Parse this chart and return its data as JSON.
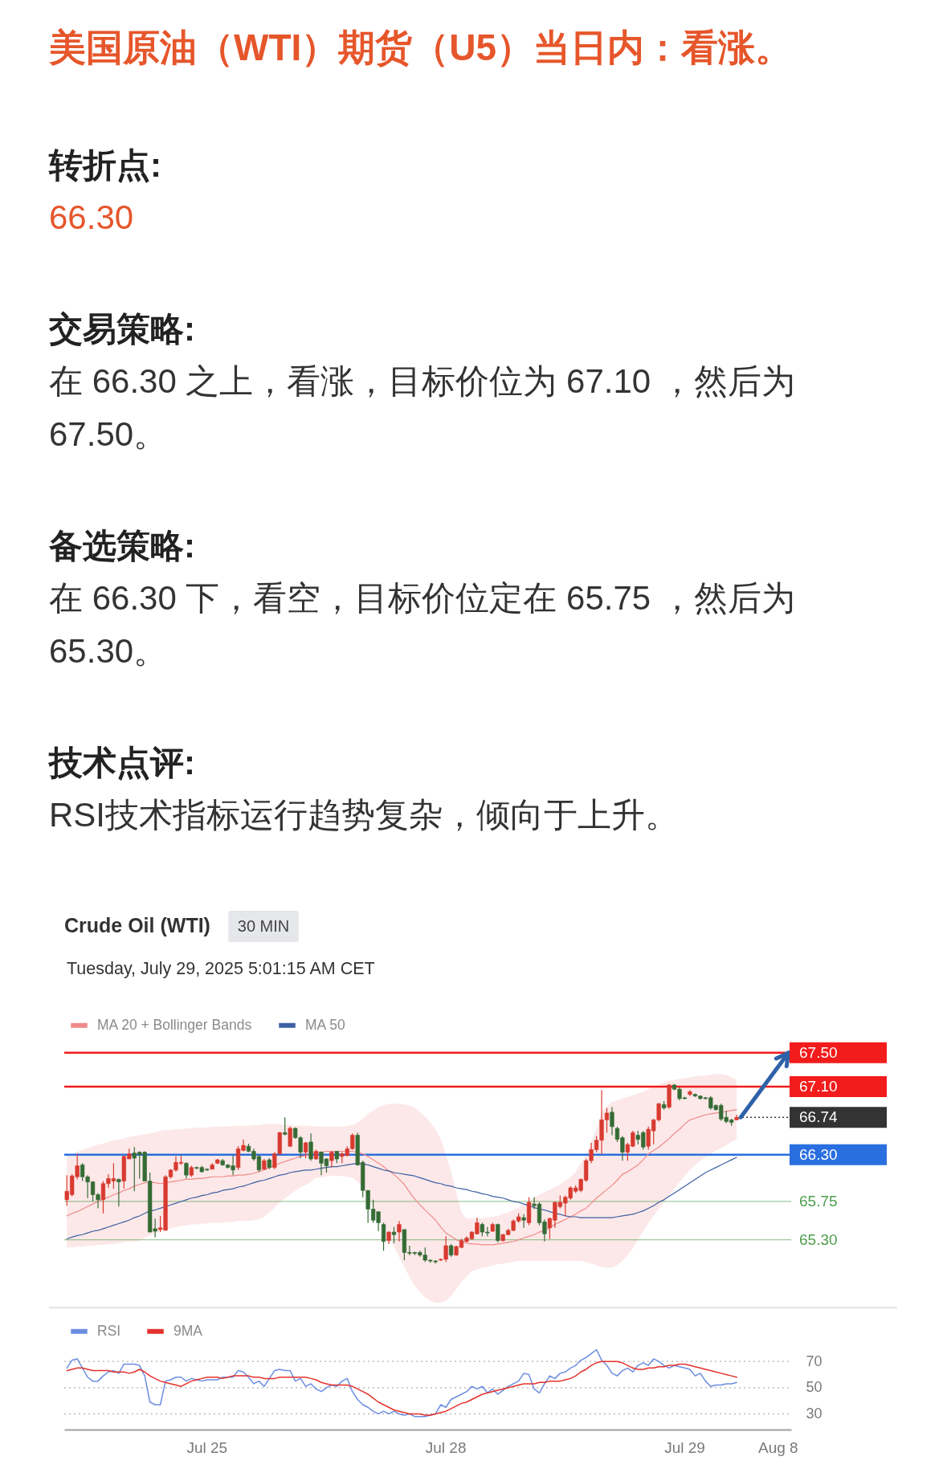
{
  "chart_data": [
    {
      "type": "candlestick",
      "title": "Crude Oil (WTI)",
      "subtitle": "Tuesday, July 29, 2025 5:01:15 AM CET",
      "annotations": [
        "美国原油（WTI）期货（U5）当日内：看涨。",
        "转折点:",
        "66.30",
        "交易策略:",
        "在 66.30 之上，看涨，目标价位为 67.10 ，然后为 67.50。",
        "备选策略:",
        "在 66.30 下，看空，目标价位定在 65.75 ，然后为 65.30。",
        "技术点评:",
        "RSI技术指标运行趋势复杂，倾向于上升。",
        "30 MIN"
      ],
      "categories": [
        null,
        null,
        null,
        null,
        null,
        null,
        null,
        null,
        null,
        null,
        null,
        null,
        null,
        null,
        null,
        null,
        null,
        null,
        null,
        null,
        null,
        null,
        null,
        null,
        null,
        null,
        null,
        "Jul 25",
        null,
        null,
        null,
        null,
        null,
        null,
        null,
        null,
        null,
        null,
        null,
        null,
        null,
        null,
        null,
        null,
        null,
        null,
        null,
        null,
        null,
        null,
        null,
        null,
        null,
        null,
        null,
        null,
        null,
        null,
        null,
        null,
        null,
        null,
        null,
        null,
        null,
        null,
        null,
        null,
        null,
        null,
        null,
        null,
        null,
        "Jul 28",
        null,
        null,
        null,
        null,
        null,
        null,
        null,
        null,
        null,
        null,
        null,
        null,
        null,
        null,
        null,
        null,
        null,
        null,
        null,
        null,
        null,
        null,
        null,
        null,
        null,
        null,
        null,
        null,
        null,
        null,
        null,
        null,
        null,
        null,
        null,
        null,
        null,
        null,
        null,
        null,
        null,
        null,
        null,
        null,
        null,
        "Jul 29",
        null,
        null,
        null,
        null,
        null,
        null,
        null,
        null,
        null,
        null,
        null,
        null,
        null,
        null,
        null,
        null,
        null,
        "Aug 8",
        null,
        null
      ],
      "ohlc": [
        [
          65.77,
          66.06,
          65.7,
          65.87
        ],
        [
          65.83,
          66.07,
          65.81,
          66.05
        ],
        [
          66.04,
          66.31,
          66.01,
          66.17
        ],
        [
          66.18,
          66.2,
          65.99,
          66.04
        ],
        [
          66.04,
          66.06,
          65.79,
          65.98
        ],
        [
          65.98,
          65.99,
          65.75,
          65.83
        ],
        [
          65.83,
          65.85,
          65.67,
          65.77
        ],
        [
          65.77,
          65.99,
          65.61,
          65.96
        ],
        [
          65.96,
          66.07,
          65.91,
          66.02
        ],
        [
          65.99,
          66.2,
          65.9,
          66.02
        ],
        [
          66.01,
          66.02,
          65.69,
          65.98
        ],
        [
          65.99,
          66.29,
          65.9,
          66.28
        ],
        [
          66.25,
          66.37,
          66.25,
          66.31
        ],
        [
          66.32,
          66.39,
          65.87,
          66.26
        ],
        [
          66.33,
          66.34,
          66.02,
          66.3
        ],
        [
          66.33,
          66.34,
          65.99,
          65.99
        ],
        [
          65.99,
          66.09,
          65.39,
          65.39
        ],
        [
          65.43,
          65.55,
          65.33,
          65.4
        ],
        [
          65.42,
          65.58,
          65.39,
          65.44
        ],
        [
          65.41,
          66.06,
          65.41,
          66.04
        ],
        [
          66.04,
          66.13,
          66.02,
          66.12
        ],
        [
          66.12,
          66.28,
          66.1,
          66.21
        ],
        [
          66.2,
          66.29,
          66.18,
          66.21
        ],
        [
          66.2,
          66.21,
          66.02,
          66.06
        ],
        [
          66.06,
          66.17,
          66.04,
          66.15
        ],
        [
          66.15,
          66.16,
          66.13,
          66.14
        ],
        [
          66.15,
          66.17,
          66.09,
          66.1
        ],
        [
          66.13,
          66.14,
          66.11,
          66.12
        ],
        [
          66.13,
          66.2,
          66.13,
          66.18
        ],
        [
          66.2,
          66.25,
          66.19,
          66.24
        ],
        [
          66.23,
          66.25,
          66.17,
          66.18
        ],
        [
          66.18,
          66.19,
          66.14,
          66.15
        ],
        [
          66.17,
          66.29,
          66.06,
          66.12
        ],
        [
          66.15,
          66.4,
          66.12,
          66.37
        ],
        [
          66.35,
          66.48,
          66.34,
          66.41
        ],
        [
          66.4,
          66.43,
          66.33,
          66.34
        ],
        [
          66.34,
          66.37,
          66.23,
          66.25
        ],
        [
          66.28,
          66.3,
          66.1,
          66.12
        ],
        [
          66.13,
          66.25,
          66.12,
          66.23
        ],
        [
          66.24,
          66.26,
          66.13,
          66.15
        ],
        [
          66.15,
          66.33,
          66.13,
          66.31
        ],
        [
          66.31,
          66.57,
          66.3,
          66.56
        ],
        [
          66.56,
          66.74,
          66.53,
          66.54
        ],
        [
          66.4,
          66.63,
          66.39,
          66.61
        ],
        [
          66.61,
          66.62,
          66.49,
          66.5
        ],
        [
          66.5,
          66.52,
          66.26,
          66.33
        ],
        [
          66.33,
          66.45,
          66.26,
          66.44
        ],
        [
          66.45,
          66.55,
          66.23,
          66.25
        ],
        [
          66.25,
          66.36,
          66.24,
          66.34
        ],
        [
          66.33,
          66.34,
          66.06,
          66.2
        ],
        [
          66.25,
          66.26,
          66.09,
          66.17
        ],
        [
          66.23,
          66.34,
          66.15,
          66.33
        ],
        [
          66.34,
          66.34,
          66.2,
          66.25
        ],
        [
          66.28,
          66.33,
          66.2,
          66.31
        ],
        [
          66.29,
          66.4,
          66.28,
          66.37
        ],
        [
          66.37,
          66.55,
          66.36,
          66.53
        ],
        [
          66.53,
          66.56,
          66.17,
          66.18
        ],
        [
          66.21,
          66.23,
          65.8,
          65.88
        ],
        [
          65.88,
          65.88,
          65.5,
          65.66
        ],
        [
          65.66,
          65.77,
          65.5,
          65.53
        ],
        [
          65.63,
          65.63,
          65.4,
          65.5
        ],
        [
          65.48,
          65.5,
          65.17,
          65.28
        ],
        [
          65.29,
          65.4,
          65.25,
          65.39
        ],
        [
          65.39,
          65.45,
          65.26,
          65.36
        ],
        [
          65.39,
          65.52,
          65.28,
          65.48
        ],
        [
          65.42,
          65.42,
          65.06,
          65.15
        ],
        [
          65.15,
          65.23,
          65.12,
          65.14
        ],
        [
          65.15,
          65.16,
          65.12,
          65.14
        ],
        [
          65.15,
          65.17,
          65.1,
          65.12
        ],
        [
          65.12,
          65.21,
          65.04,
          65.06
        ],
        [
          65.06,
          65.07,
          65.03,
          65.05
        ],
        [
          65.05,
          65.06,
          65.02,
          65.04
        ],
        [
          65.06,
          65.08,
          65.05,
          65.07
        ],
        [
          65.07,
          65.34,
          65.04,
          65.23
        ],
        [
          65.23,
          65.25,
          65.1,
          65.12
        ],
        [
          65.12,
          65.23,
          65.11,
          65.22
        ],
        [
          65.21,
          65.31,
          65.2,
          65.29
        ],
        [
          65.28,
          65.34,
          65.27,
          65.32
        ],
        [
          65.31,
          65.4,
          65.3,
          65.39
        ],
        [
          65.37,
          65.56,
          65.36,
          65.5
        ],
        [
          65.48,
          65.5,
          65.34,
          65.39
        ],
        [
          65.39,
          65.45,
          65.34,
          65.38
        ],
        [
          65.4,
          65.5,
          65.39,
          65.48
        ],
        [
          65.48,
          65.49,
          65.27,
          65.29
        ],
        [
          65.29,
          65.37,
          65.28,
          65.36
        ],
        [
          65.36,
          65.43,
          65.35,
          65.41
        ],
        [
          65.41,
          65.54,
          65.4,
          65.52
        ],
        [
          65.52,
          65.61,
          65.5,
          65.57
        ],
        [
          65.56,
          65.6,
          65.44,
          65.53
        ],
        [
          65.5,
          65.8,
          65.47,
          65.74
        ],
        [
          65.72,
          65.8,
          65.66,
          65.7
        ],
        [
          65.72,
          65.74,
          65.47,
          65.5
        ],
        [
          65.51,
          65.54,
          65.28,
          65.37
        ],
        [
          65.44,
          65.56,
          65.31,
          65.55
        ],
        [
          65.53,
          65.75,
          65.44,
          65.74
        ],
        [
          65.69,
          65.82,
          65.67,
          65.74
        ],
        [
          65.73,
          65.82,
          65.58,
          65.8
        ],
        [
          65.79,
          65.93,
          65.77,
          65.91
        ],
        [
          65.87,
          65.94,
          65.85,
          65.91
        ],
        [
          65.88,
          66.02,
          65.86,
          66.01
        ],
        [
          66.0,
          66.25,
          65.98,
          66.23
        ],
        [
          66.23,
          66.44,
          66.2,
          66.36
        ],
        [
          66.36,
          66.52,
          66.33,
          66.47
        ],
        [
          66.47,
          67.06,
          66.31,
          66.71
        ],
        [
          66.71,
          66.85,
          66.56,
          66.79
        ],
        [
          66.8,
          66.86,
          66.53,
          66.63
        ],
        [
          66.61,
          66.63,
          66.45,
          66.48
        ],
        [
          66.5,
          66.52,
          66.23,
          66.33
        ],
        [
          66.33,
          66.44,
          66.23,
          66.42
        ],
        [
          66.4,
          66.58,
          66.39,
          66.56
        ],
        [
          66.53,
          66.58,
          66.42,
          66.48
        ],
        [
          66.56,
          66.58,
          66.36,
          66.39
        ],
        [
          66.4,
          66.63,
          66.36,
          66.6
        ],
        [
          66.58,
          66.72,
          66.42,
          66.71
        ],
        [
          66.71,
          66.91,
          66.69,
          66.9
        ],
        [
          66.89,
          66.93,
          66.83,
          66.85
        ],
        [
          66.86,
          67.13,
          66.84,
          67.12
        ],
        [
          67.12,
          67.13,
          67.06,
          67.07
        ],
        [
          67.07,
          67.09,
          66.94,
          66.96
        ],
        [
          66.97,
          66.98,
          66.95,
          66.96
        ],
        [
          67.01,
          67.06,
          66.99,
          67.04
        ],
        [
          67.01,
          67.02,
          66.98,
          66.99
        ],
        [
          66.99,
          67.0,
          66.95,
          66.96
        ],
        [
          66.97,
          66.98,
          66.95,
          66.96
        ],
        [
          66.97,
          66.99,
          66.83,
          66.85
        ],
        [
          66.88,
          66.89,
          66.82,
          66.83
        ],
        [
          66.88,
          66.9,
          66.7,
          66.72
        ],
        [
          66.74,
          66.82,
          66.67,
          66.69
        ],
        [
          66.71,
          66.72,
          66.64,
          66.68
        ],
        [
          66.71,
          66.77,
          66.71,
          66.74
        ],
        null,
        null,
        null,
        null,
        null,
        null,
        null,
        null,
        null,
        null
      ],
      "colors": [
        "#d83a30",
        "#d83a30",
        "#d83a30",
        "#356b35",
        "#356b35",
        "#356b35",
        "#356b35",
        "#d83a30",
        "#d83a30",
        "#d83a30",
        "#356b35",
        "#d83a30",
        "#d83a30",
        "#356b35",
        "#356b35",
        "#356b35",
        "#356b35",
        "#356b35",
        "#d83a30",
        "#d83a30",
        "#d83a30",
        "#d83a30",
        "#d83a30",
        "#356b35",
        "#d83a30",
        "#356b35",
        "#356b35",
        "#356b35",
        "#d83a30",
        "#d83a30",
        "#356b35",
        "#356b35",
        "#356b35",
        "#d83a30",
        "#d83a30",
        "#356b35",
        "#356b35",
        "#356b35",
        "#d83a30",
        "#356b35",
        "#d83a30",
        "#d83a30",
        "#356b35",
        "#d83a30",
        "#356b35",
        "#356b35",
        "#d83a30",
        "#356b35",
        "#d83a30",
        "#356b35",
        "#356b35",
        "#d83a30",
        "#356b35",
        "#d83a30",
        "#d83a30",
        "#d83a30",
        "#356b35",
        "#356b35",
        "#356b35",
        "#356b35",
        "#356b35",
        "#356b35",
        "#d83a30",
        "#356b35",
        "#d83a30",
        "#356b35",
        "#356b35",
        "#356b35",
        "#356b35",
        "#356b35",
        "#356b35",
        "#356b35",
        "#d83a30",
        "#d83a30",
        "#356b35",
        "#d83a30",
        "#d83a30",
        "#d83a30",
        "#d83a30",
        "#d83a30",
        "#356b35",
        "#356b35",
        "#d83a30",
        "#356b35",
        "#d83a30",
        "#d83a30",
        "#d83a30",
        "#d83a30",
        "#356b35",
        "#d83a30",
        "#356b35",
        "#356b35",
        "#356b35",
        "#d83a30",
        "#d83a30",
        "#d83a30",
        "#d83a30",
        "#d83a30",
        "#d83a30",
        "#d83a30",
        "#d83a30",
        "#d83a30",
        "#d83a30",
        "#d83a30",
        "#d83a30",
        "#356b35",
        "#356b35",
        "#356b35",
        "#d83a30",
        "#d83a30",
        "#356b35",
        "#356b35",
        "#d83a30",
        "#d83a30",
        "#d83a30",
        "#356b35",
        "#d83a30",
        "#356b35",
        "#356b35",
        "#356b35",
        "#d83a30",
        "#356b35",
        "#356b35",
        "#356b35",
        "#356b35",
        "#356b35",
        "#356b35",
        "#356b35",
        "#356b35",
        "#d83a30",
        null,
        null,
        null,
        null,
        null,
        null,
        null,
        null,
        null,
        null
      ],
      "series": [
        {
          "name": "MA 20 + Bollinger Bands",
          "type": "line",
          "color": "#f08a8a",
          "values": [
            65.58,
            65.61,
            65.63,
            65.66,
            65.69,
            65.72,
            65.75,
            65.78,
            65.8,
            65.83,
            65.85,
            65.88,
            65.9,
            65.93,
            65.95,
            65.97,
            65.98,
            65.97,
            65.96,
            65.97,
            65.98,
            65.99,
            66.0,
            66.01,
            66.01,
            66.02,
            66.02,
            66.03,
            66.04,
            66.04,
            66.04,
            66.05,
            66.05,
            66.06,
            66.06,
            66.07,
            66.08,
            66.1,
            66.12,
            66.15,
            66.17,
            66.2,
            66.22,
            66.24,
            66.26,
            66.28,
            66.29,
            66.31,
            66.33,
            66.33,
            66.34,
            66.34,
            66.34,
            66.34,
            66.34,
            66.34,
            66.33,
            66.31,
            66.28,
            66.24,
            66.2,
            66.16,
            66.11,
            66.07,
            66.01,
            65.95,
            65.86,
            65.78,
            65.71,
            65.65,
            65.59,
            65.53,
            65.45,
            65.38,
            65.34,
            65.3,
            65.28,
            65.26,
            65.25,
            65.25,
            65.24,
            65.24,
            65.24,
            65.25,
            65.26,
            65.27,
            65.28,
            65.3,
            65.32,
            65.34,
            65.36,
            65.39,
            65.41,
            65.44,
            65.48,
            65.51,
            65.54,
            65.57,
            65.6,
            65.64,
            65.67,
            65.73,
            65.79,
            65.84,
            65.89,
            65.94,
            66.0,
            66.07,
            66.1,
            66.14,
            66.18,
            66.24,
            66.31,
            66.35,
            66.39,
            66.44,
            66.49,
            66.55,
            66.6,
            66.66,
            66.71,
            66.73,
            66.75,
            66.77,
            66.78,
            66.79,
            66.8,
            66.81,
            66.82,
            66.83,
            null,
            null,
            null,
            null,
            null,
            null,
            null,
            null,
            null,
            null
          ],
          "upper": [
            66.29,
            66.31,
            66.33,
            66.36,
            66.38,
            66.4,
            66.42,
            66.43,
            66.45,
            66.47,
            66.48,
            66.49,
            66.51,
            66.52,
            66.53,
            66.54,
            66.55,
            66.56,
            66.58,
            66.59,
            66.59,
            66.6,
            66.6,
            66.61,
            66.61,
            66.62,
            66.62,
            66.62,
            66.63,
            66.63,
            66.63,
            66.63,
            66.64,
            66.64,
            66.64,
            66.64,
            66.65,
            66.65,
            66.66,
            66.66,
            66.66,
            66.66,
            66.65,
            66.65,
            66.64,
            66.64,
            66.64,
            66.64,
            66.63,
            66.63,
            66.63,
            66.63,
            66.63,
            66.63,
            66.64,
            66.65,
            66.68,
            66.72,
            66.78,
            66.82,
            66.86,
            66.88,
            66.9,
            66.9,
            66.9,
            66.89,
            66.88,
            66.85,
            66.8,
            66.75,
            66.68,
            66.6,
            66.48,
            66.3,
            66.1,
            65.85,
            65.62,
            65.55,
            65.55,
            65.55,
            65.55,
            65.56,
            65.57,
            65.58,
            65.6,
            65.62,
            65.65,
            65.68,
            65.72,
            65.76,
            65.8,
            65.83,
            65.86,
            65.89,
            65.92,
            65.95,
            65.99,
            66.04,
            66.1,
            66.2,
            66.3,
            66.45,
            66.6,
            66.8,
            66.87,
            66.92,
            66.94,
            66.96,
            66.98,
            67.0,
            67.02,
            67.04,
            67.07,
            67.1,
            67.12,
            67.15,
            67.17,
            67.18,
            67.19,
            67.2,
            67.21,
            67.22,
            67.23,
            67.23,
            67.24,
            67.25,
            67.25,
            67.24,
            67.21,
            67.18,
            null,
            null,
            null,
            null,
            null,
            null,
            null,
            null,
            null,
            null
          ],
          "lower": [
            65.21,
            65.21,
            65.22,
            65.22,
            65.23,
            65.23,
            65.24,
            65.24,
            65.25,
            65.25,
            65.26,
            65.27,
            65.28,
            65.28,
            65.29,
            65.32,
            65.35,
            65.38,
            65.4,
            65.42,
            65.43,
            65.45,
            65.46,
            65.47,
            65.48,
            65.48,
            65.49,
            65.49,
            65.5,
            65.5,
            65.5,
            65.51,
            65.51,
            65.52,
            65.52,
            65.52,
            65.53,
            65.54,
            65.57,
            65.62,
            65.68,
            65.74,
            65.79,
            65.83,
            65.88,
            65.92,
            65.94,
            65.98,
            66.03,
            66.03,
            66.05,
            66.05,
            66.05,
            66.05,
            66.04,
            66.03,
            65.98,
            65.9,
            65.8,
            65.68,
            65.55,
            65.44,
            65.33,
            65.22,
            65.1,
            64.98,
            64.86,
            64.76,
            64.68,
            64.62,
            64.58,
            64.56,
            64.56,
            64.58,
            64.64,
            64.72,
            64.8,
            64.87,
            64.93,
            64.95,
            64.97,
            64.98,
            65.0,
            65.01,
            65.02,
            65.03,
            65.04,
            65.05,
            65.05,
            65.05,
            65.05,
            65.05,
            65.05,
            65.05,
            65.05,
            65.05,
            65.05,
            65.05,
            65.05,
            65.05,
            65.04,
            65.02,
            65.0,
            64.98,
            64.97,
            64.97,
            65.0,
            65.05,
            65.12,
            65.2,
            65.3,
            65.4,
            65.5,
            65.58,
            65.66,
            65.74,
            65.82,
            65.9,
            65.98,
            66.05,
            66.12,
            66.18,
            66.23,
            66.27,
            66.31,
            66.35,
            66.38,
            66.41,
            66.45,
            66.48,
            null,
            null,
            null,
            null,
            null,
            null,
            null,
            null,
            null,
            null
          ]
        },
        {
          "name": "MA 50",
          "type": "line",
          "color": "#3d5fa3",
          "values": [
            65.31,
            65.33,
            65.35,
            65.36,
            65.38,
            65.4,
            65.41,
            65.43,
            65.45,
            65.47,
            65.49,
            65.51,
            65.53,
            65.56,
            65.58,
            65.61,
            65.64,
            65.65,
            65.67,
            65.69,
            65.71,
            65.73,
            65.75,
            65.77,
            65.79,
            65.8,
            65.82,
            65.83,
            65.85,
            65.86,
            65.88,
            65.89,
            65.9,
            65.92,
            65.93,
            65.95,
            65.97,
            65.99,
            66.0,
            66.02,
            66.04,
            66.06,
            66.07,
            66.09,
            66.1,
            66.11,
            66.12,
            66.12,
            66.13,
            66.14,
            66.15,
            66.16,
            66.16,
            66.17,
            66.18,
            66.19,
            66.2,
            66.19,
            66.18,
            66.16,
            66.14,
            66.12,
            66.11,
            66.09,
            66.08,
            66.07,
            66.06,
            66.05,
            66.03,
            66.01,
            65.99,
            65.97,
            65.96,
            65.94,
            65.93,
            65.91,
            65.9,
            65.89,
            65.87,
            65.86,
            65.84,
            65.83,
            65.81,
            65.8,
            65.79,
            65.77,
            65.75,
            65.74,
            65.72,
            65.7,
            65.68,
            65.66,
            65.65,
            65.63,
            65.61,
            65.6,
            65.58,
            65.57,
            65.57,
            65.56,
            65.56,
            65.56,
            65.56,
            65.56,
            65.56,
            65.56,
            65.57,
            65.58,
            65.59,
            65.6,
            65.62,
            65.64,
            65.67,
            65.7,
            65.74,
            65.77,
            65.81,
            65.85,
            65.89,
            65.93,
            65.97,
            66.01,
            66.05,
            66.09,
            66.12,
            66.15,
            66.18,
            66.21,
            66.24,
            66.27,
            null,
            null,
            null,
            null,
            null,
            null,
            null,
            null,
            null,
            null
          ]
        }
      ],
      "ref_lines": [
        {
          "axis": "y",
          "value": 67.5,
          "label": "67.50",
          "color": "#f21c1c"
        },
        {
          "axis": "y",
          "value": 67.1,
          "label": "67.10",
          "color": "#f21c1c"
        },
        {
          "axis": "y",
          "value": 66.74,
          "label": "66.74",
          "color": "#333333",
          "line_style": "dotted"
        },
        {
          "axis": "y",
          "value": 66.3,
          "label": "66.30",
          "color": "#2a6fe0"
        },
        {
          "axis": "y",
          "value": 65.75,
          "label": "65.75",
          "color": "#4e9e4e"
        },
        {
          "axis": "y",
          "value": 65.3,
          "label": "65.30",
          "color": "#4e9e4e"
        }
      ],
      "ylim": [
        64.5,
        67.5
      ],
      "tick_labels": false,
      "legend": "top left"
    },
    {
      "type": "line",
      "categories": [
        null,
        null,
        null,
        null,
        null,
        null,
        null,
        null,
        null,
        null,
        null,
        null,
        null,
        null,
        null,
        null,
        null,
        null,
        null,
        null,
        null,
        null,
        null,
        null,
        null,
        null,
        null,
        "Jul 25",
        null,
        null,
        null,
        null,
        null,
        null,
        null,
        null,
        null,
        null,
        null,
        null,
        null,
        null,
        null,
        null,
        null,
        null,
        null,
        null,
        null,
        null,
        null,
        null,
        null,
        null,
        null,
        null,
        null,
        null,
        null,
        null,
        null,
        null,
        null,
        null,
        null,
        null,
        null,
        null,
        null,
        null,
        null,
        null,
        null,
        "Jul 28",
        null,
        null,
        null,
        null,
        null,
        null,
        null,
        null,
        null,
        null,
        null,
        null,
        null,
        null,
        null,
        null,
        null,
        null,
        null,
        null,
        null,
        null,
        null,
        null,
        null,
        null,
        null,
        null,
        null,
        null,
        null,
        null,
        null,
        null,
        null,
        null,
        null,
        null,
        null,
        null,
        null,
        null,
        null,
        null,
        null,
        "Jul 29",
        null,
        null,
        null,
        null,
        null,
        null,
        null,
        null,
        null,
        null,
        null,
        null,
        null,
        null,
        null,
        null,
        null,
        "Aug 8",
        null,
        null
      ],
      "series": [
        {
          "name": "RSI",
          "color": "#6b8de0",
          "values": [
            65,
            71,
            72,
            65,
            58,
            55,
            55,
            59,
            62,
            63,
            61,
            68,
            68,
            68,
            67,
            59,
            39,
            37,
            37,
            55,
            56,
            58,
            58,
            55,
            57,
            56,
            55,
            56,
            56,
            56,
            58,
            58,
            58,
            63,
            62,
            58,
            53,
            55,
            51,
            57,
            63,
            64,
            63,
            63,
            55,
            57,
            51,
            53,
            49,
            47,
            50,
            52,
            51,
            55,
            57,
            47,
            41,
            37,
            35,
            32,
            30,
            32,
            30,
            32,
            30,
            29,
            30,
            28,
            28,
            28,
            29,
            30,
            37,
            35,
            41,
            43,
            45,
            47,
            51,
            49,
            51,
            46,
            49,
            45,
            48,
            51,
            53,
            55,
            61,
            60,
            49,
            46,
            53,
            59,
            57,
            61,
            62,
            65,
            67,
            71,
            73,
            76,
            79,
            71,
            67,
            61,
            59,
            63,
            65,
            62,
            67,
            69,
            67,
            72,
            70,
            67,
            65,
            67,
            66,
            65,
            64,
            59,
            61,
            55,
            51,
            52,
            52,
            53,
            53,
            54,
            null,
            null,
            null,
            null,
            null,
            null,
            null,
            null,
            null,
            null
          ]
        },
        {
          "name": "9MA",
          "color": "#e5312b",
          "values": [
            63,
            64,
            65,
            65,
            64,
            63,
            63,
            63,
            63,
            62,
            62,
            62,
            61,
            62,
            64,
            62,
            59,
            57,
            55,
            54,
            53,
            52,
            51,
            53,
            55,
            56,
            57,
            58,
            58,
            58,
            57,
            58,
            59,
            59,
            59,
            59,
            58,
            58,
            57,
            57,
            57,
            58,
            58,
            58,
            58,
            58,
            58,
            57,
            56,
            54,
            53,
            52,
            52,
            52,
            52,
            51,
            49,
            47,
            45,
            42,
            39,
            37,
            35,
            33,
            32,
            31,
            30,
            30,
            30,
            29,
            29,
            30,
            31,
            32,
            34,
            36,
            38,
            39,
            41,
            43,
            45,
            46,
            47,
            48,
            49,
            50,
            51,
            52,
            53,
            53,
            53,
            54,
            54,
            55,
            55,
            55,
            56,
            57,
            59,
            62,
            64,
            67,
            69,
            70,
            70,
            70,
            70,
            69,
            67,
            65,
            64,
            64,
            65,
            65,
            66,
            66,
            67,
            67,
            68,
            68,
            67,
            66,
            65,
            64,
            63,
            62,
            61,
            60,
            59,
            58,
            null,
            null,
            null,
            null,
            null,
            null,
            null,
            null,
            null,
            null
          ]
        }
      ],
      "ylim": [
        18,
        111
      ],
      "yticks": [
        30,
        50,
        70
      ],
      "grid": "y",
      "legend": "top left"
    }
  ]
}
